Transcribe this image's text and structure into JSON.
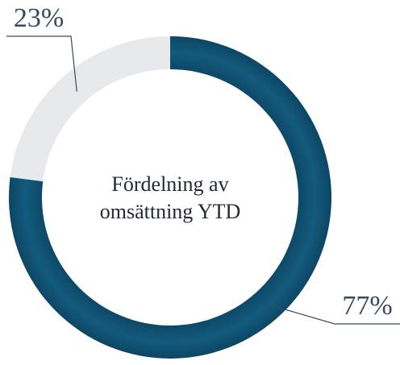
{
  "chart_data": {
    "type": "pie",
    "center_label": [
      "Fördelning av",
      "omsättning YTD"
    ],
    "values": [
      77,
      23
    ],
    "value_labels": [
      "77%",
      "23%"
    ],
    "colors": [
      "#0f4d6e",
      "#e8e9ec"
    ]
  }
}
